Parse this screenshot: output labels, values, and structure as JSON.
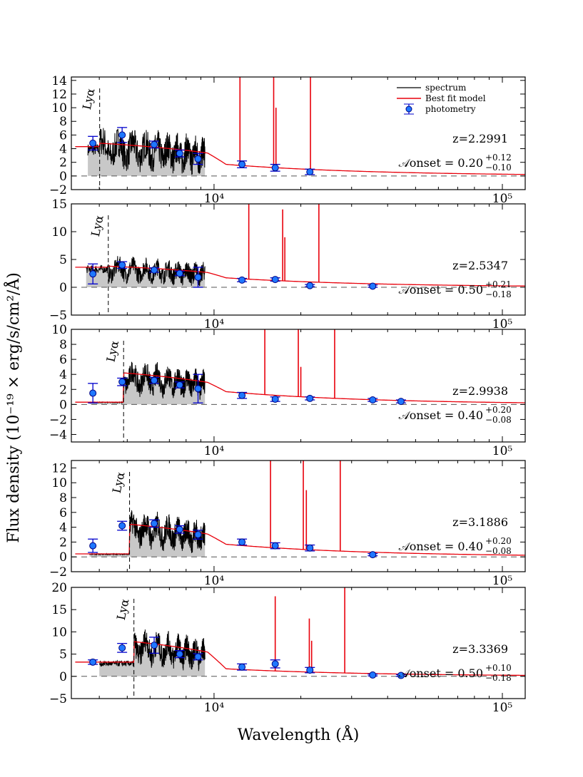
{
  "chart_data": {
    "type": "line",
    "xlabel": "Wavelength (Å)",
    "ylabel": "Flux density (10⁻¹⁹ × erg/s/cm²/Å)",
    "xscale": "log",
    "xlim": [
      3200,
      120000
    ],
    "x_tick_labels": [
      "10⁴",
      "10⁵"
    ],
    "legend": {
      "placement": "top-right",
      "entries": [
        "spectrum",
        "Best fit model",
        "photometry"
      ]
    },
    "colors": {
      "spectrum": "#000000",
      "model": "#e8000b",
      "photometry_fill": "#1f77ff",
      "photometry_edge": "#000080",
      "errorbar": "#0000cc",
      "shade": "#c8c8c8"
    },
    "panels": [
      {
        "redshift_label": "z=2.2991",
        "onset_label": "𝒜onset = 0.20",
        "onset_upper": "+0.12",
        "onset_lower": "−0.10",
        "lya_label": "Lyα",
        "z": 2.2991,
        "ylim": [
          -2,
          14.5
        ],
        "yticks": [
          -2,
          0,
          2,
          4,
          6,
          8,
          10,
          12,
          14
        ],
        "spectrum_range": [
          3650,
          9300
        ],
        "spectrum_level": 5.0,
        "model_base": 4.8,
        "model_uv": 4.3,
        "emission_lines": [
          {
            "x": 12300,
            "y": 30
          },
          {
            "x": 16100,
            "y": 30
          },
          {
            "x": 16400,
            "y": 10
          },
          {
            "x": 21600,
            "y": 30
          }
        ],
        "photometry": [
          {
            "x": 3800,
            "y": 4.8,
            "err": 1.0
          },
          {
            "x": 4800,
            "y": 6.0,
            "err": 1.1
          },
          {
            "x": 6200,
            "y": 4.6,
            "err": 0.5
          },
          {
            "x": 7600,
            "y": 3.3,
            "err": 0.5
          },
          {
            "x": 8800,
            "y": 2.5,
            "err": 0.8
          },
          {
            "x": 12500,
            "y": 1.7,
            "err": 0.5
          },
          {
            "x": 16300,
            "y": 1.2,
            "err": 0.5
          },
          {
            "x": 21500,
            "y": 0.6,
            "err": 0.4
          }
        ]
      },
      {
        "redshift_label": "z=2.5347",
        "onset_label": "𝒜onset = 0.50",
        "onset_upper": "+0.21",
        "onset_lower": "−0.18",
        "lya_label": "Lyα",
        "z": 2.5347,
        "ylim": [
          -5,
          15
        ],
        "yticks": [
          -5,
          0,
          5,
          10,
          15
        ],
        "spectrum_range": [
          3600,
          9300
        ],
        "spectrum_level": 3.6,
        "model_base": 3.8,
        "model_uv": 3.6,
        "emission_lines": [
          {
            "x": 13200,
            "y": 30
          },
          {
            "x": 17300,
            "y": 14
          },
          {
            "x": 17600,
            "y": 9
          },
          {
            "x": 23100,
            "y": 30
          }
        ],
        "photometry": [
          {
            "x": 3800,
            "y": 2.4,
            "err": 1.8
          },
          {
            "x": 4800,
            "y": 4.0,
            "err": 0.6
          },
          {
            "x": 6200,
            "y": 3.1,
            "err": 0.4
          },
          {
            "x": 7600,
            "y": 2.5,
            "err": 0.4
          },
          {
            "x": 8800,
            "y": 1.8,
            "err": 1.8
          },
          {
            "x": 12500,
            "y": 1.3,
            "err": 0.3
          },
          {
            "x": 16300,
            "y": 1.4,
            "err": 0.3
          },
          {
            "x": 21500,
            "y": 0.3,
            "err": 0.2
          },
          {
            "x": 35500,
            "y": 0.2,
            "err": 0.2
          }
        ]
      },
      {
        "redshift_label": "z=2.9938",
        "onset_label": "𝒜onset = 0.40",
        "onset_upper": "+0.20",
        "onset_lower": "−0.08",
        "lya_label": "Lyα",
        "z": 2.9938,
        "ylim": [
          -5,
          10
        ],
        "yticks": [
          -4,
          -2,
          0,
          2,
          4,
          6,
          8,
          10
        ],
        "spectrum_range": [
          3700,
          9300
        ],
        "spectrum_level": 3.4,
        "model_base": 4.2,
        "model_uv": 0.3,
        "emission_lines": [
          {
            "x": 15000,
            "y": 30
          },
          {
            "x": 19600,
            "y": 30
          },
          {
            "x": 20000,
            "y": 5
          },
          {
            "x": 26200,
            "y": 30
          }
        ],
        "photometry": [
          {
            "x": 3800,
            "y": 1.5,
            "err": 1.3
          },
          {
            "x": 4800,
            "y": 3.0,
            "err": 0.5
          },
          {
            "x": 6200,
            "y": 3.2,
            "err": 0.4
          },
          {
            "x": 7600,
            "y": 2.6,
            "err": 0.4
          },
          {
            "x": 8800,
            "y": 2.1,
            "err": 1.9
          },
          {
            "x": 12500,
            "y": 1.2,
            "err": 0.4
          },
          {
            "x": 16300,
            "y": 0.7,
            "err": 0.3
          },
          {
            "x": 21500,
            "y": 0.8,
            "err": 0.2
          },
          {
            "x": 35500,
            "y": 0.6,
            "err": 0.2
          },
          {
            "x": 44500,
            "y": 0.4,
            "err": 0.2
          }
        ]
      },
      {
        "redshift_label": "z=3.1886",
        "onset_label": "𝒜onset = 0.40",
        "onset_upper": "+0.20",
        "onset_lower": "−0.08",
        "lya_label": "Lyα",
        "z": 3.1886,
        "ylim": [
          -2,
          13
        ],
        "yticks": [
          -2,
          0,
          2,
          4,
          6,
          8,
          10,
          12
        ],
        "spectrum_range": [
          3700,
          9300
        ],
        "spectrum_level": 3.8,
        "model_base": 4.4,
        "model_uv": 0.4,
        "emission_lines": [
          {
            "x": 15700,
            "y": 30
          },
          {
            "x": 20400,
            "y": 30
          },
          {
            "x": 20900,
            "y": 9
          },
          {
            "x": 27400,
            "y": 30
          }
        ],
        "photometry": [
          {
            "x": 3800,
            "y": 1.5,
            "err": 0.9
          },
          {
            "x": 4800,
            "y": 4.2,
            "err": 0.6
          },
          {
            "x": 6200,
            "y": 4.5,
            "err": 0.5
          },
          {
            "x": 7600,
            "y": 3.7,
            "err": 0.5
          },
          {
            "x": 8800,
            "y": 3.0,
            "err": 0.6
          },
          {
            "x": 12500,
            "y": 2.0,
            "err": 0.4
          },
          {
            "x": 16300,
            "y": 1.5,
            "err": 0.4
          },
          {
            "x": 21500,
            "y": 1.2,
            "err": 0.4
          },
          {
            "x": 35500,
            "y": 0.3,
            "err": 0.15
          }
        ]
      },
      {
        "redshift_label": "z=3.3369",
        "onset_label": "𝒜onset = 0.50",
        "onset_upper": "+0.10",
        "onset_lower": "−0.18",
        "lya_label": "Lyα",
        "z": 3.3369,
        "ylim": [
          -5,
          20
        ],
        "yticks": [
          -5,
          0,
          5,
          10,
          15,
          20
        ],
        "spectrum_range": [
          4000,
          9300
        ],
        "spectrum_level": 6.0,
        "model_base": 7.8,
        "model_uv": 3.2,
        "emission_lines": [
          {
            "x": 16300,
            "y": 18
          },
          {
            "x": 21400,
            "y": 13
          },
          {
            "x": 21800,
            "y": 8
          },
          {
            "x": 28400,
            "y": 30
          }
        ],
        "photometry": [
          {
            "x": 3800,
            "y": 3.2,
            "err": 0.5
          },
          {
            "x": 4800,
            "y": 6.4,
            "err": 1.0
          },
          {
            "x": 6200,
            "y": 7.0,
            "err": 1.8
          },
          {
            "x": 7600,
            "y": 5.0,
            "err": 0.8
          },
          {
            "x": 8800,
            "y": 4.4,
            "err": 0.7
          },
          {
            "x": 12500,
            "y": 2.1,
            "err": 0.7
          },
          {
            "x": 16300,
            "y": 2.8,
            "err": 0.9
          },
          {
            "x": 21500,
            "y": 1.4,
            "err": 0.6
          },
          {
            "x": 35500,
            "y": 0.3,
            "err": 0.2
          },
          {
            "x": 44500,
            "y": 0.2,
            "err": 0.2
          }
        ]
      }
    ]
  }
}
